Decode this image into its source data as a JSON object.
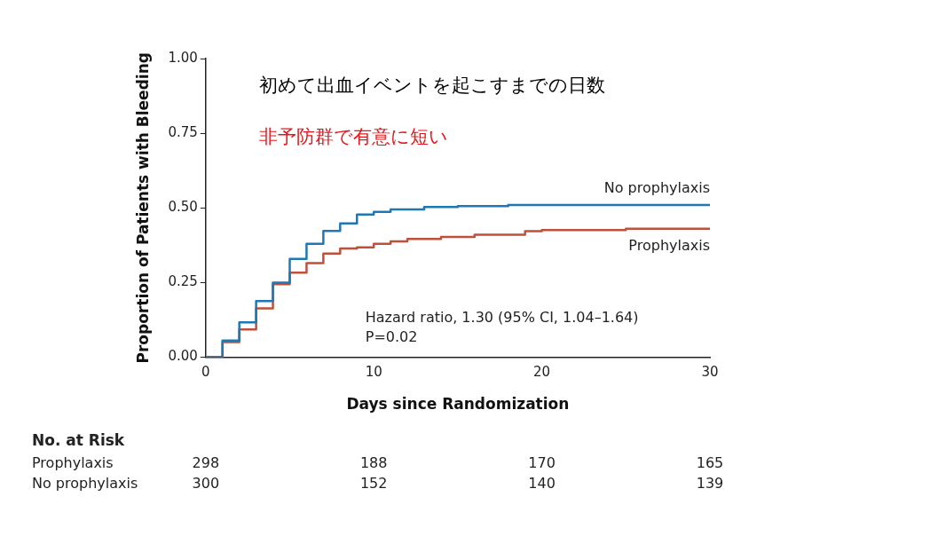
{
  "chart_data": {
    "type": "step",
    "title": "初めて出血イベントを起こすまでの日数",
    "subtitle": "非予防群で有意に短い",
    "xlabel": "Days since Randomization",
    "ylabel": "Proportion of Patients with Bleeding",
    "xlim": [
      0,
      30
    ],
    "xticks": [
      0,
      10,
      20,
      30
    ],
    "ylim": [
      0,
      1
    ],
    "yticks": [
      {
        "value": 0,
        "label": "0.00"
      },
      {
        "value": 0.25,
        "label": "0.25"
      },
      {
        "value": 0.5,
        "label": "0.50"
      },
      {
        "value": 0.75,
        "label": "0.75"
      },
      {
        "value": 1,
        "label": "1.00"
      }
    ],
    "grid": false,
    "legend": false,
    "line_style": "solid",
    "marker": "none",
    "series": [
      {
        "name": "No prophylaxis",
        "color": "#1f77b4",
        "x": [
          0,
          1,
          2,
          3,
          4,
          5,
          6,
          7,
          8,
          9,
          10,
          11,
          13,
          15,
          18,
          30
        ],
        "values": [
          0,
          0.056,
          0.117,
          0.188,
          0.25,
          0.329,
          0.38,
          0.423,
          0.448,
          0.478,
          0.487,
          0.495,
          0.503,
          0.506,
          0.51,
          0.51
        ]
      },
      {
        "name": "Prophylaxis",
        "color": "#c0503a",
        "x": [
          0,
          1,
          2,
          3,
          4,
          5,
          6,
          7,
          8,
          9,
          10,
          11,
          12,
          14,
          16,
          19,
          20,
          25,
          30
        ],
        "values": [
          0,
          0.051,
          0.093,
          0.164,
          0.245,
          0.283,
          0.315,
          0.347,
          0.364,
          0.368,
          0.38,
          0.388,
          0.396,
          0.403,
          0.41,
          0.422,
          0.426,
          0.43,
          0.43
        ]
      }
    ],
    "annotations": [
      "Hazard ratio, 1.30 (95% CI, 1.04–1.64)",
      "P=0.02",
      "No. at Risk",
      "Prophylaxis",
      "298",
      "188",
      "170",
      "165",
      "No prophylaxis",
      "300",
      "152",
      "140",
      "139"
    ]
  }
}
